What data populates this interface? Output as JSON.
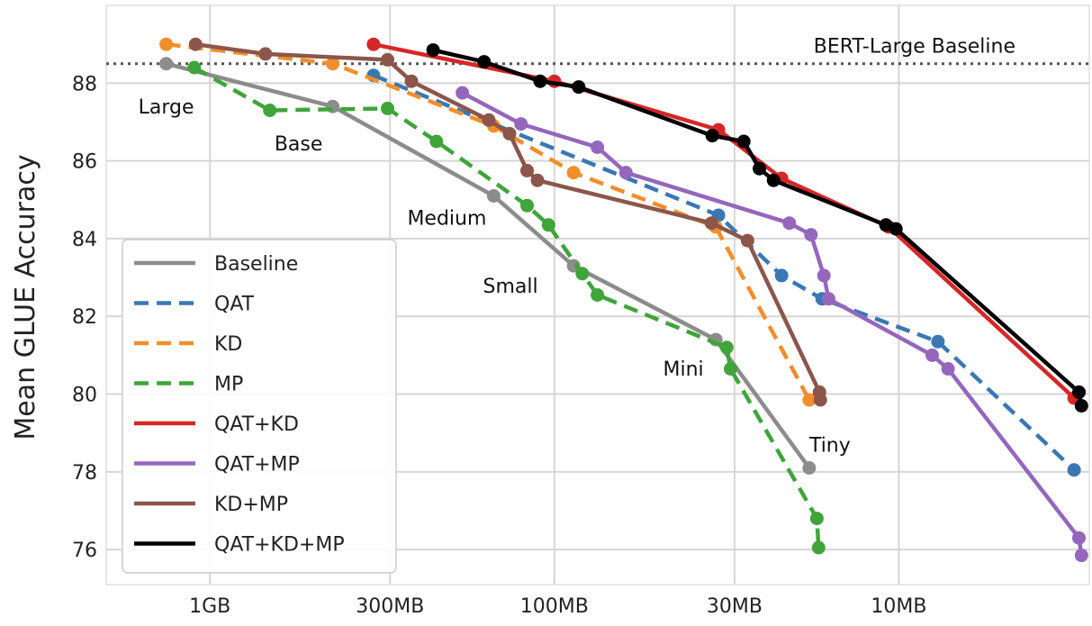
{
  "chart_data": {
    "type": "line",
    "title": "",
    "xlabel": "",
    "ylabel": "Mean GLUE Accuracy",
    "x_scale": "log-reversed",
    "x_unit": "MB",
    "xlim": [
      2000,
      2.8
    ],
    "ylim": [
      75.1,
      90.0
    ],
    "xticks": [
      {
        "value": 1000,
        "label": "1GB"
      },
      {
        "value": 300,
        "label": "300MB"
      },
      {
        "value": 100,
        "label": "100MB"
      },
      {
        "value": 30,
        "label": "30MB"
      },
      {
        "value": 10,
        "label": "10MB"
      }
    ],
    "yticks": [
      76,
      78,
      80,
      82,
      84,
      86,
      88
    ],
    "grid": true,
    "legend_position": "bottom-left",
    "reference_line": {
      "label": "BERT-Large Baseline",
      "y": 88.5
    },
    "annotations": [
      {
        "text": "Large",
        "x": 1340,
        "y": 88.1
      },
      {
        "text": "Base",
        "x": 440,
        "y": 87.2
      },
      {
        "text": "Medium",
        "x": 150,
        "y": 85.1
      },
      {
        "text": "Small",
        "x": 88,
        "y": 83.3
      },
      {
        "text": "Mini",
        "x": 34,
        "y": 81.4
      },
      {
        "text": "Tiny",
        "x": 18.2,
        "y": 78.1
      }
    ],
    "series": [
      {
        "name": "Baseline",
        "color": "#8c8c8c",
        "dash": "solid",
        "points": [
          [
            1340,
            88.5
          ],
          [
            440,
            87.4
          ],
          [
            150,
            85.1
          ],
          [
            88,
            83.3
          ],
          [
            34,
            81.4
          ],
          [
            18.2,
            78.1
          ]
        ]
      },
      {
        "name": "QAT",
        "color": "#3a78b4",
        "dash": "dashed",
        "points": [
          [
            335,
            88.2
          ],
          [
            33.4,
            84.6
          ],
          [
            21.9,
            83.05
          ],
          [
            16.7,
            82.45
          ],
          [
            7.7,
            81.35
          ],
          [
            3.1,
            78.05
          ]
        ]
      },
      {
        "name": "KD",
        "color": "#f28e2b",
        "dash": "dashed",
        "points": [
          [
            1340,
            89.0
          ],
          [
            440,
            88.5
          ],
          [
            150,
            86.9
          ],
          [
            88,
            85.7
          ],
          [
            34,
            84.3
          ],
          [
            18.2,
            79.85
          ]
        ]
      },
      {
        "name": "MP",
        "color": "#3fa53a",
        "dash": "dashed",
        "points": [
          [
            1110,
            88.4
          ],
          [
            670,
            87.3
          ],
          [
            305,
            87.35
          ],
          [
            220,
            86.5
          ],
          [
            120,
            84.85
          ],
          [
            104,
            84.35
          ],
          [
            83,
            83.1
          ],
          [
            75,
            82.55
          ],
          [
            31.6,
            81.2
          ],
          [
            30.8,
            80.65
          ],
          [
            17.3,
            76.8
          ],
          [
            17.1,
            76.05
          ]
        ]
      },
      {
        "name": "QAT+KD",
        "color": "#d62728",
        "dash": "solid",
        "points": [
          [
            335,
            89.0
          ],
          [
            100,
            88.05
          ],
          [
            33.4,
            86.8
          ],
          [
            21.9,
            85.55
          ],
          [
            10.7,
            84.3
          ],
          [
            3.1,
            79.9
          ]
        ]
      },
      {
        "name": "QAT+MP",
        "color": "#9467bd",
        "dash": "solid",
        "points": [
          [
            185,
            87.75
          ],
          [
            125,
            86.95
          ],
          [
            75,
            86.35
          ],
          [
            62,
            85.7
          ],
          [
            20.8,
            84.4
          ],
          [
            18.0,
            84.1
          ],
          [
            16.5,
            83.05
          ],
          [
            16.0,
            82.45
          ],
          [
            8.0,
            81.0
          ],
          [
            7.2,
            80.65
          ],
          [
            3.0,
            76.3
          ],
          [
            2.95,
            75.85
          ]
        ]
      },
      {
        "name": "KD+MP",
        "color": "#8c564b",
        "dash": "solid",
        "points": [
          [
            1100,
            89.0
          ],
          [
            690,
            88.75
          ],
          [
            305,
            88.6
          ],
          [
            260,
            88.05
          ],
          [
            155,
            87.05
          ],
          [
            135,
            86.7
          ],
          [
            120,
            85.75
          ],
          [
            112,
            85.5
          ],
          [
            35,
            84.4
          ],
          [
            27.5,
            83.95
          ],
          [
            17.0,
            80.05
          ],
          [
            16.9,
            79.85
          ]
        ]
      },
      {
        "name": "QAT+KD+MP",
        "color": "#000000",
        "dash": "solid",
        "points": [
          [
            225,
            88.85
          ],
          [
            160,
            88.55
          ],
          [
            110,
            88.05
          ],
          [
            85,
            87.9
          ],
          [
            34.8,
            86.65
          ],
          [
            28.2,
            86.5
          ],
          [
            25.4,
            85.8
          ],
          [
            23.1,
            85.5
          ],
          [
            10.9,
            84.35
          ],
          [
            10.2,
            84.25
          ],
          [
            3.0,
            80.05
          ],
          [
            2.95,
            79.7
          ]
        ]
      }
    ]
  }
}
